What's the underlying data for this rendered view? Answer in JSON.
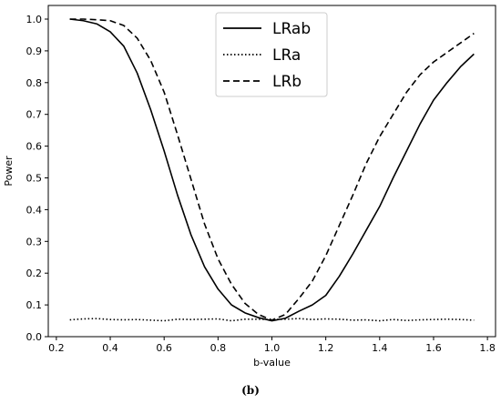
{
  "caption": "(b)",
  "chart_data": {
    "type": "line",
    "xlabel": "b-value",
    "ylabel": "Power",
    "xlim": [
      0.2,
      1.8
    ],
    "ylim": [
      0.0,
      1.0
    ],
    "xticks": [
      "0.2",
      "0.4",
      "0.6",
      "0.8",
      "1.0",
      "1.2",
      "1.4",
      "1.6",
      "1.8"
    ],
    "yticks": [
      "0.0",
      "0.1",
      "0.2",
      "0.3",
      "0.4",
      "0.5",
      "0.6",
      "0.7",
      "0.8",
      "0.9",
      "1.0"
    ],
    "grid": false,
    "legend_position": "top-center",
    "series": [
      {
        "name": "LRab",
        "style": "solid",
        "color": "#000000",
        "x": [
          0.25,
          0.3,
          0.35,
          0.4,
          0.45,
          0.5,
          0.55,
          0.6,
          0.65,
          0.7,
          0.75,
          0.8,
          0.85,
          0.9,
          0.95,
          1.0,
          1.05,
          1.1,
          1.15,
          1.2,
          1.25,
          1.3,
          1.35,
          1.4,
          1.45,
          1.5,
          1.55,
          1.6,
          1.65,
          1.7,
          1.75
        ],
        "y": [
          1.0,
          0.995,
          0.985,
          0.96,
          0.915,
          0.83,
          0.715,
          0.585,
          0.445,
          0.32,
          0.22,
          0.15,
          0.1,
          0.075,
          0.06,
          0.05,
          0.058,
          0.08,
          0.1,
          0.13,
          0.19,
          0.26,
          0.335,
          0.41,
          0.5,
          0.585,
          0.67,
          0.745,
          0.8,
          0.85,
          0.89
        ]
      },
      {
        "name": "LRa",
        "style": "dotted",
        "color": "#000000",
        "x": [
          0.25,
          0.3,
          0.35,
          0.4,
          0.45,
          0.5,
          0.55,
          0.6,
          0.65,
          0.7,
          0.75,
          0.8,
          0.85,
          0.9,
          0.95,
          1.0,
          1.05,
          1.1,
          1.15,
          1.2,
          1.25,
          1.3,
          1.35,
          1.4,
          1.45,
          1.5,
          1.55,
          1.6,
          1.65,
          1.7,
          1.75
        ],
        "y": [
          0.053,
          0.056,
          0.057,
          0.054,
          0.053,
          0.054,
          0.052,
          0.05,
          0.055,
          0.054,
          0.055,
          0.056,
          0.05,
          0.055,
          0.055,
          0.054,
          0.055,
          0.057,
          0.054,
          0.056,
          0.055,
          0.052,
          0.053,
          0.05,
          0.054,
          0.051,
          0.053,
          0.054,
          0.055,
          0.054,
          0.052
        ]
      },
      {
        "name": "LRb",
        "style": "dashed",
        "color": "#000000",
        "x": [
          0.25,
          0.3,
          0.35,
          0.4,
          0.45,
          0.5,
          0.55,
          0.6,
          0.65,
          0.7,
          0.75,
          0.8,
          0.85,
          0.9,
          0.95,
          1.0,
          1.05,
          1.1,
          1.15,
          1.2,
          1.25,
          1.3,
          1.35,
          1.4,
          1.45,
          1.5,
          1.55,
          1.6,
          1.65,
          1.7,
          1.75
        ],
        "y": [
          1.0,
          1.0,
          0.998,
          0.995,
          0.98,
          0.94,
          0.87,
          0.77,
          0.635,
          0.495,
          0.355,
          0.245,
          0.165,
          0.105,
          0.07,
          0.052,
          0.07,
          0.12,
          0.175,
          0.255,
          0.35,
          0.445,
          0.545,
          0.63,
          0.7,
          0.77,
          0.825,
          0.865,
          0.895,
          0.925,
          0.955
        ]
      }
    ]
  }
}
